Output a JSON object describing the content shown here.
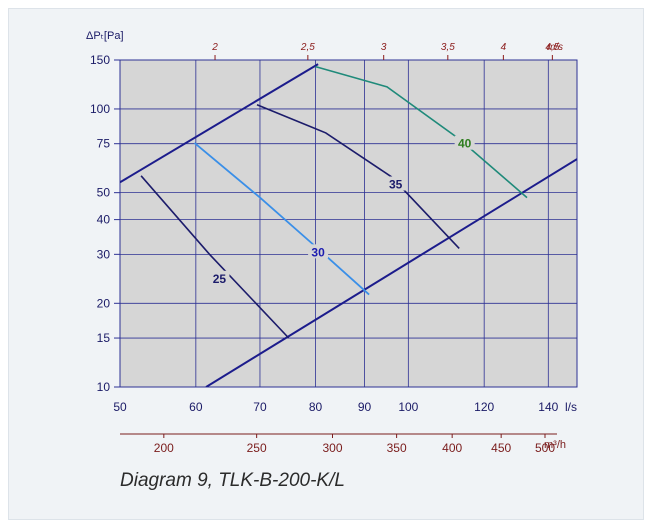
{
  "caption": "Diagram 9, TLK-B-200-K/L",
  "chart_data": {
    "type": "line",
    "ylabel": "ΔPₜ[Pa]",
    "x_unit": "l/s",
    "x2_unit": "m³/h",
    "v_unit": "m/s",
    "xlim": [
      50,
      150
    ],
    "ylim": [
      10,
      150
    ],
    "x_scale": "log",
    "y_scale": "log",
    "grid": true,
    "x_ticks": [
      50,
      60,
      70,
      80,
      90,
      100,
      120,
      140
    ],
    "x_tick_labels": [
      "50",
      "60",
      "70",
      "80",
      "90",
      "100",
      "120",
      "140"
    ],
    "y_ticks": [
      10,
      15,
      20,
      30,
      40,
      50,
      75,
      100,
      150
    ],
    "y_tick_labels": [
      "10",
      "15",
      "20",
      "30",
      "40",
      "50",
      "75",
      "100",
      "150"
    ],
    "m3h_ticks": [
      200,
      250,
      300,
      350,
      400,
      450,
      500
    ],
    "m3h_tick_labels": [
      "200",
      "250",
      "300",
      "350",
      "400",
      "450",
      "500"
    ],
    "velocity_ticks": [
      2,
      2.5,
      3,
      3.5,
      4,
      4.5
    ],
    "velocity_tick_labels": [
      "2",
      "2,5",
      "3",
      "3,5",
      "4",
      "4,5"
    ],
    "colors": {
      "plot_bg": "#d6d6d6",
      "grid": "#2d3194",
      "axis_text": "#1a1a66",
      "top_text": "#8b1a1a",
      "bottom_text": "#7a1c1c",
      "boundary": "#1c1c8c",
      "sound_25": "#1c1c6b",
      "sound_30": "#3a8fe8",
      "sound_35": "#1c1c6b",
      "sound_40": "#1f8a7a",
      "label_40": "#2e7d1e"
    },
    "series": [
      {
        "name": "25",
        "color_key": "sound_25",
        "points": [
          [
            52.6,
            57.5
          ],
          [
            62,
            30
          ],
          [
            75,
            15
          ]
        ],
        "label_at": [
          63.5,
          24.5
        ]
      },
      {
        "name": "30",
        "color_key": "sound_30",
        "points": [
          [
            59.8,
            75.5
          ],
          [
            70,
            48
          ],
          [
            80,
            32
          ],
          [
            91,
            21.5
          ]
        ],
        "label_at": [
          80.5,
          30.5
        ]
      },
      {
        "name": "35",
        "color_key": "sound_35",
        "points": [
          [
            69.5,
            103.5
          ],
          [
            82,
            82
          ],
          [
            96,
            57
          ],
          [
            113,
            31.5
          ]
        ],
        "label_at": [
          97,
          53.5
        ]
      },
      {
        "name": "40",
        "color_key": "sound_40",
        "points": [
          [
            80,
            142
          ],
          [
            95,
            120
          ],
          [
            113,
            78
          ],
          [
            133,
            48
          ]
        ],
        "label_at": [
          114.5,
          75
        ]
      }
    ],
    "boundary_lines": [
      {
        "points": [
          [
            50,
            54.5
          ],
          [
            80.5,
            145
          ]
        ]
      },
      {
        "points": [
          [
            61.5,
            10
          ],
          [
            150,
            66
          ]
        ]
      }
    ]
  }
}
